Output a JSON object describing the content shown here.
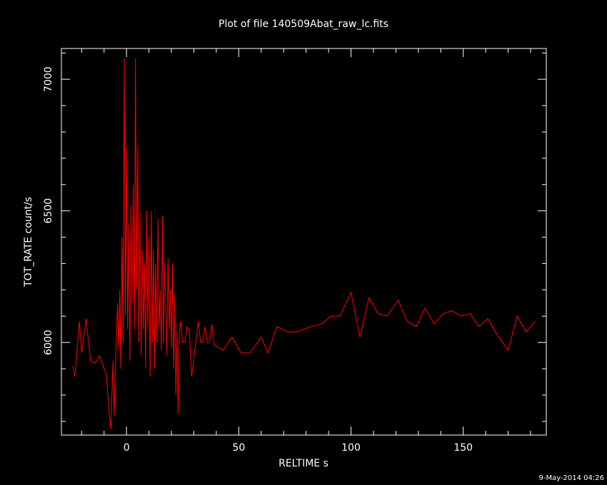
{
  "chart_data": {
    "type": "line",
    "title": "Plot of file 140509Abat_raw_lc.fits",
    "x_label": "RELTIME  s",
    "y_label": "TOT_RATE  count/s",
    "footer": "9-May-2014 04:26",
    "xlim": [
      -29,
      187
    ],
    "ylim": [
      5648,
      7117
    ],
    "xticks": [
      0,
      50,
      100,
      150
    ],
    "yticks": [
      6000,
      6500,
      7000
    ],
    "x_minor_ticks": [
      -20,
      -10,
      10,
      20,
      30,
      40,
      60,
      70,
      80,
      90,
      110,
      120,
      130,
      140,
      160,
      170,
      180
    ],
    "y_minor_ticks": [
      5700,
      5800,
      5900,
      6100,
      6200,
      6300,
      6400,
      6600,
      6700,
      6800,
      6900,
      7100
    ],
    "x": [
      -24,
      -23,
      -21,
      -20,
      -18,
      -16,
      -14,
      -12,
      -10,
      -9,
      -8,
      -7,
      -6,
      -5.5,
      -5,
      -4,
      -3.5,
      -3,
      -2.5,
      -2,
      -1.5,
      -1,
      -0.5,
      0,
      0.5,
      1,
      1.5,
      2,
      2.5,
      3,
      3.5,
      4,
      4.5,
      5,
      5.5,
      6,
      6.5,
      7,
      7.5,
      8,
      8.5,
      9,
      9.5,
      10,
      10.5,
      11,
      11.5,
      12,
      12.5,
      13,
      13.5,
      14,
      14.5,
      15,
      15.5,
      16,
      16.5,
      17,
      18,
      18.5,
      19,
      19.5,
      20,
      20.5,
      21,
      21.5,
      22,
      22.5,
      23,
      23.5,
      24,
      25,
      26,
      27,
      28,
      29,
      30,
      32,
      33,
      34,
      35,
      36,
      37,
      38,
      39,
      43,
      47,
      51,
      55,
      60,
      63,
      67,
      72,
      76,
      82,
      87,
      91,
      95,
      100,
      104,
      108,
      112,
      116,
      121,
      125,
      129,
      133,
      137,
      141,
      145,
      149,
      153,
      157,
      161,
      165,
      170,
      174,
      178,
      182
    ],
    "series": [
      {
        "color": "#ff0000",
        "values": [
          5910,
          5870,
          6080,
          5960,
          6090,
          5930,
          5920,
          5950,
          5900,
          5880,
          5760,
          5670,
          5930,
          5720,
          5900,
          6150,
          5980,
          6200,
          5900,
          6400,
          6000,
          7080,
          6100,
          6740,
          6050,
          6450,
          5930,
          6520,
          6150,
          6600,
          6050,
          7080,
          6200,
          6750,
          6000,
          6500,
          5950,
          6350,
          6050,
          6300,
          5900,
          6500,
          6050,
          6400,
          5870,
          6500,
          6000,
          6350,
          5900,
          6300,
          6000,
          6470,
          6050,
          6200,
          5970,
          6480,
          6000,
          6300,
          5950,
          6320,
          6050,
          6200,
          5980,
          6300,
          5900,
          6180,
          5800,
          6050,
          5730,
          6030,
          6080,
          6000,
          6000,
          6060,
          6040,
          5870,
          5940,
          6080,
          6000,
          6000,
          6060,
          6000,
          6000,
          6070,
          5990,
          5970,
          6020,
          5960,
          5960,
          6020,
          5960,
          6060,
          6040,
          6040,
          6060,
          6070,
          6100,
          6100,
          6190,
          6020,
          6170,
          6110,
          6100,
          6160,
          6080,
          6060,
          6130,
          6070,
          6110,
          6120,
          6100,
          6110,
          6060,
          6090,
          6030,
          5970,
          6100,
          6040,
          6080
        ]
      }
    ]
  }
}
